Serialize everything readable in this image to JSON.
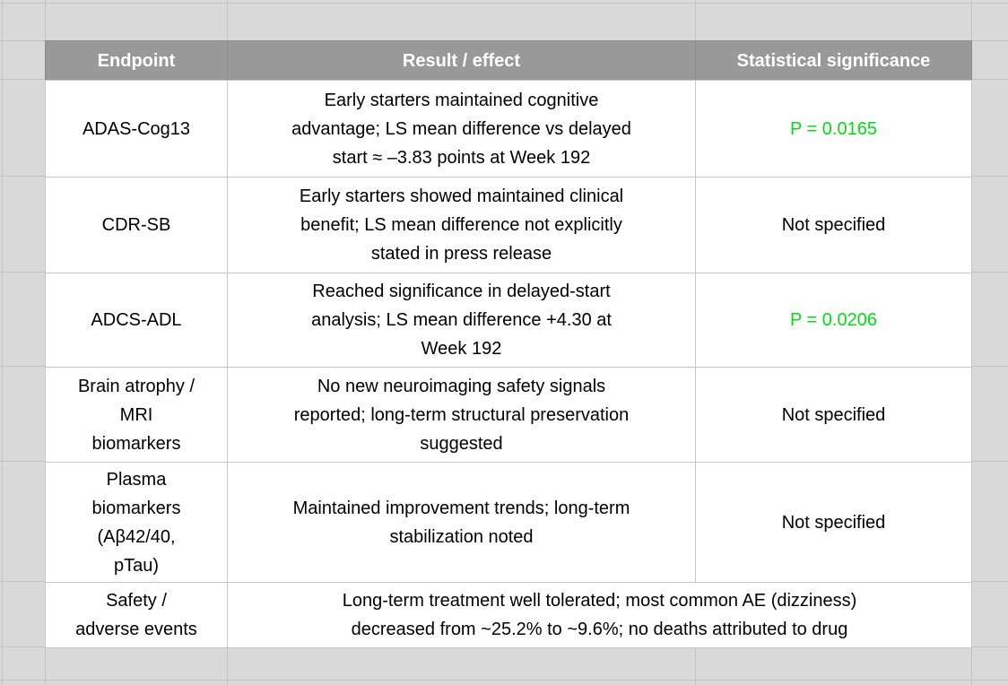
{
  "colors": {
    "surround_cell_bg": "#d9d9d9",
    "gridline": "#c2c2c2",
    "header_bg": "#999999",
    "header_text": "#ffffff",
    "cell_border": "#c6c6c6",
    "body_text": "#000000",
    "significant_green": "#00dd11"
  },
  "table": {
    "headers": [
      "Endpoint",
      "Result / effect",
      "Statistical significance"
    ],
    "rows": [
      {
        "endpoint": "ADAS-Cog13",
        "result": "Early starters maintained cognitive\nadvantage; LS mean difference vs delayed\nstart ≈ –3.83 points at Week 192",
        "significance": "P = 0.0165",
        "significance_color": "green",
        "merged": false
      },
      {
        "endpoint": "CDR-SB",
        "result": "Early starters showed maintained clinical\nbenefit; LS mean difference not explicitly\nstated in press release",
        "significance": "Not specified",
        "significance_color": "black",
        "merged": false
      },
      {
        "endpoint": "ADCS-ADL",
        "result": "Reached significance in delayed-start\nanalysis; LS mean difference +4.30 at\nWeek 192",
        "significance": "P = 0.0206",
        "significance_color": "green",
        "merged": false
      },
      {
        "endpoint": "Brain atrophy /\nMRI\nbiomarkers",
        "result": "No new neuroimaging safety signals\nreported; long-term structural preservation\nsuggested",
        "significance": "Not specified",
        "significance_color": "black",
        "merged": false
      },
      {
        "endpoint": "Plasma\nbiomarkers\n(Aβ42/40,\npTau)",
        "result": "Maintained improvement trends; long-term\nstabilization noted",
        "significance": "Not specified",
        "significance_color": "black",
        "merged": false
      },
      {
        "endpoint": "Safety /\nadverse events",
        "result": "Long-term treatment well tolerated; most common AE (dizziness)\ndecreased from ~25.2% to ~9.6%; no deaths attributed to drug",
        "significance": "",
        "significance_color": "black",
        "merged": true
      }
    ]
  }
}
